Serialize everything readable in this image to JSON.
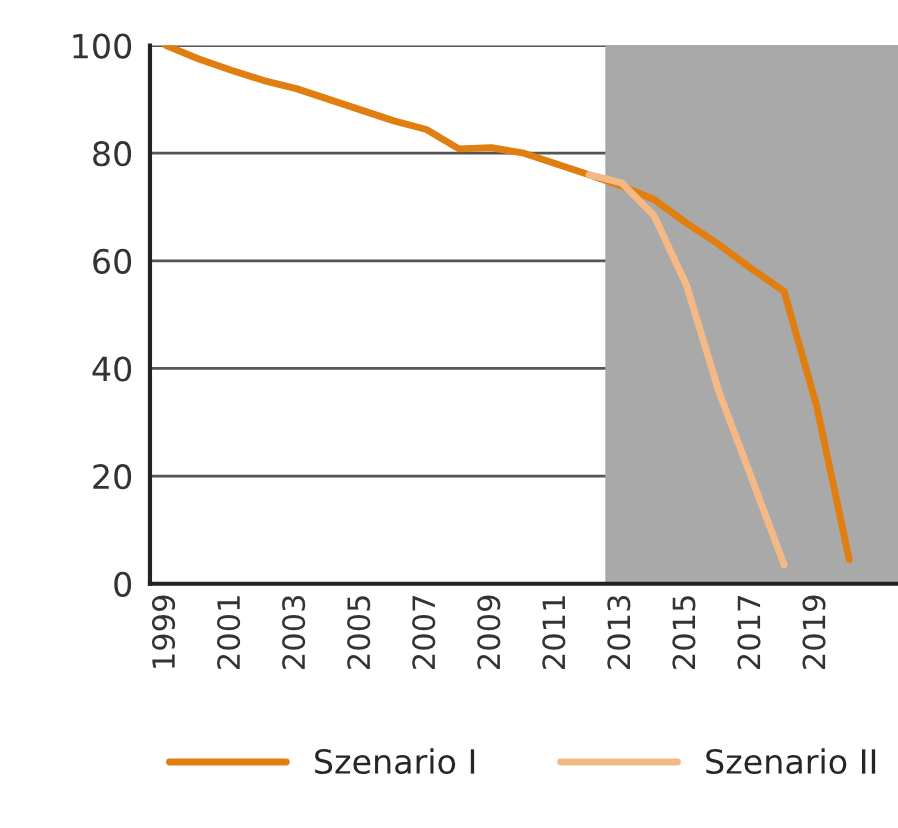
{
  "chart_data": {
    "type": "line",
    "categories": [
      "1999",
      null,
      "2001",
      null,
      "2003",
      null,
      "2005",
      null,
      "2007",
      null,
      "2009",
      null,
      "2011",
      null,
      "2013",
      null,
      "2015",
      null,
      "2017",
      null,
      "2019",
      null,
      null
    ],
    "series": [
      {
        "name": "Szenario I",
        "color": "#e07f10",
        "values": [
          100,
          97.5,
          95.4,
          93.5,
          92,
          90,
          88,
          86,
          84.4,
          80.8,
          81,
          80,
          78,
          76,
          73.9,
          71.4,
          67,
          63,
          58.5,
          54.3,
          33,
          4.5,
          null
        ]
      },
      {
        "name": "Szenario II",
        "color": "#f5b985",
        "values": [
          null,
          null,
          null,
          null,
          null,
          null,
          null,
          null,
          null,
          null,
          null,
          null,
          null,
          76,
          74.5,
          68.4,
          55.4,
          35.6,
          19.6,
          3.5,
          null,
          null,
          null
        ]
      }
    ],
    "ylim": [
      0,
      100
    ],
    "yticks": [
      0,
      20,
      40,
      60,
      80,
      100
    ],
    "grid": "y",
    "legend": "bottom",
    "line_style": "solid",
    "marker": "none"
  }
}
